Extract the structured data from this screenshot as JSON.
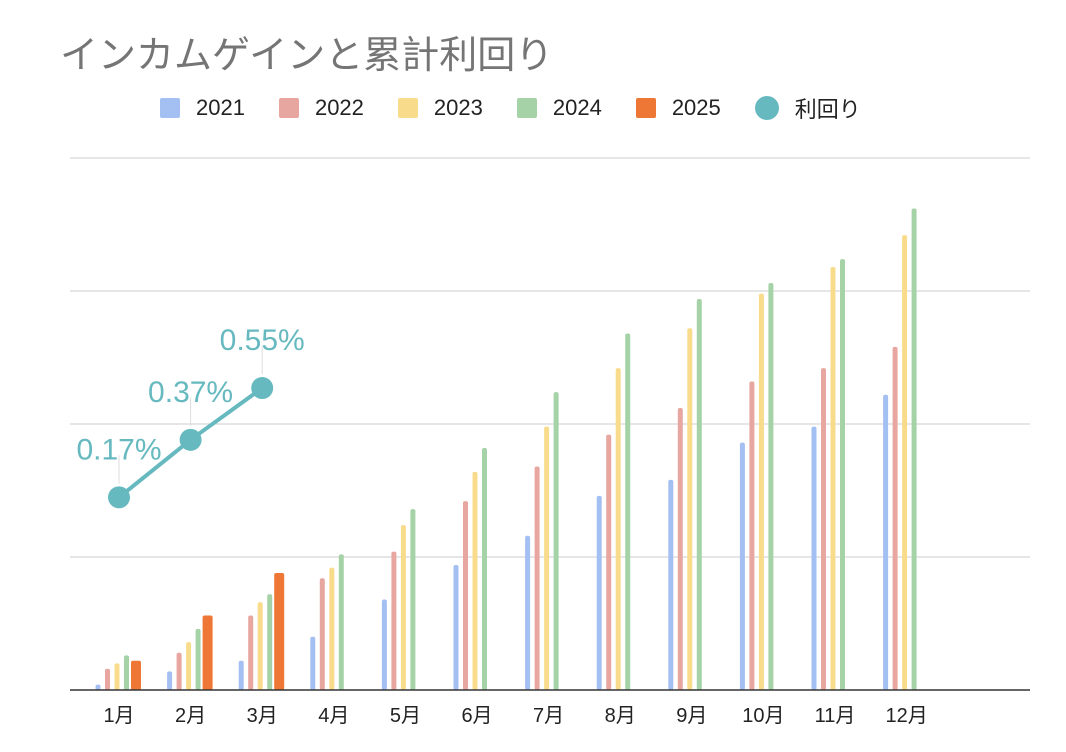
{
  "chart_data": {
    "type": "bar",
    "title": "インカムゲインと累計利回り",
    "categories": [
      "1月",
      "2月",
      "3月",
      "4月",
      "5月",
      "6月",
      "7月",
      "8月",
      "9月",
      "10月",
      "11月",
      "12月"
    ],
    "series": [
      {
        "name": "2021",
        "color": "#a4bff2",
        "values": [
          0.2,
          0.7,
          1.1,
          2.0,
          3.4,
          4.7,
          5.8,
          7.3,
          7.9,
          9.3,
          9.9,
          11.1
        ]
      },
      {
        "name": "2022",
        "color": "#e8a6a0",
        "values": [
          0.8,
          1.4,
          2.8,
          4.2,
          5.2,
          7.1,
          8.4,
          9.6,
          10.6,
          11.6,
          12.1,
          12.9
        ]
      },
      {
        "name": "2023",
        "color": "#f8dc8c",
        "values": [
          1.0,
          1.8,
          3.3,
          4.6,
          6.2,
          8.2,
          9.9,
          12.1,
          13.6,
          14.9,
          15.9,
          17.1
        ]
      },
      {
        "name": "2024",
        "color": "#a6d2a8",
        "values": [
          1.3,
          2.3,
          3.6,
          5.1,
          6.8,
          9.1,
          11.2,
          13.4,
          14.7,
          15.3,
          16.2,
          18.1
        ]
      },
      {
        "name": "2025",
        "color": "#ee7735",
        "values": [
          1.1,
          2.8,
          4.4,
          null,
          null,
          null,
          null,
          null,
          null,
          null,
          null,
          null
        ]
      }
    ],
    "yield_series": {
      "name": "利回り",
      "color": "#66b9bf",
      "values": [
        0.17,
        0.37,
        0.55,
        null,
        null,
        null,
        null,
        null,
        null,
        null,
        null,
        null
      ],
      "labels": [
        "0.17%",
        "0.37%",
        "0.55%"
      ]
    },
    "grid": true,
    "legend_position": "top"
  }
}
